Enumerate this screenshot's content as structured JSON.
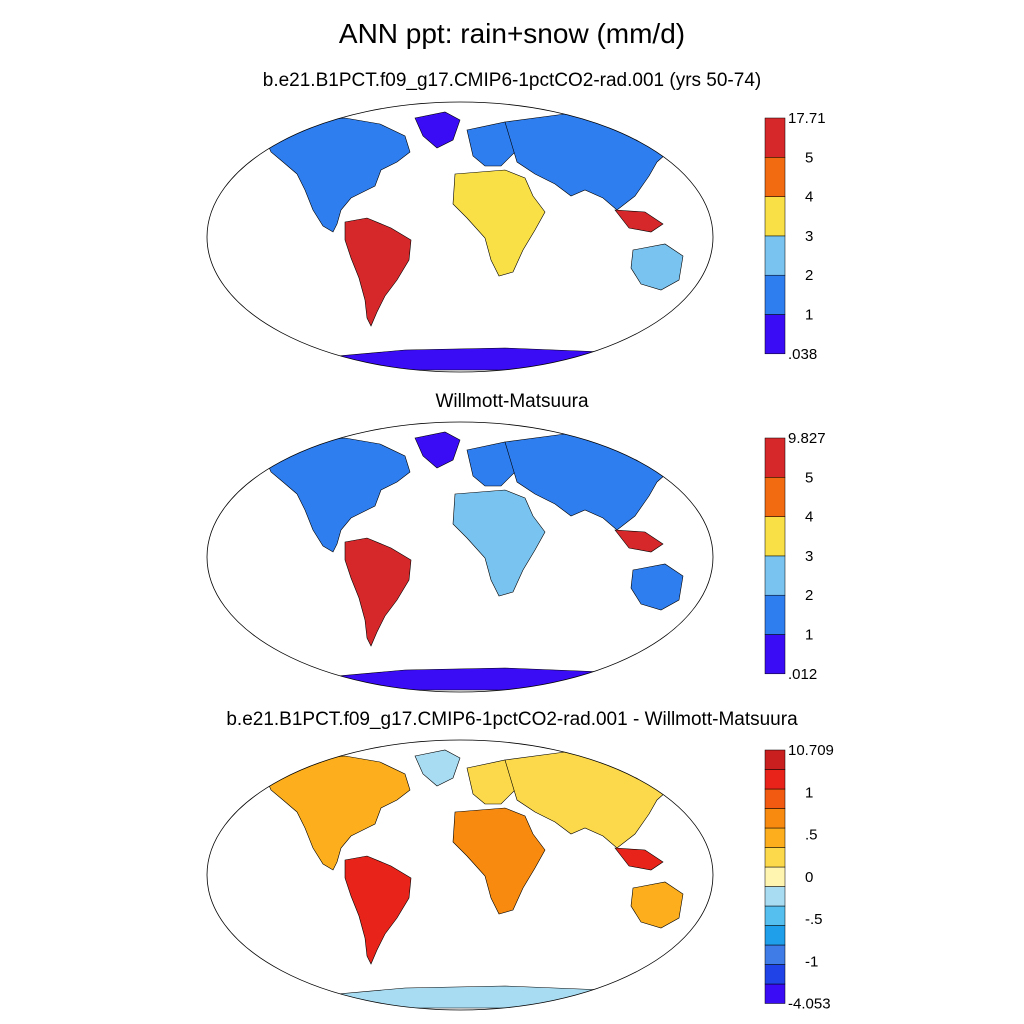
{
  "title": "ANN ppt: rain+snow (mm/d)",
  "panels": [
    {
      "subtitle": "b.e21.B1PCT.f09_g17.CMIP6-1pctCO2-rad.001 (yrs 50-74)",
      "colorbar": {
        "colors": [
          "#3a0bf5",
          "#2f7ef0",
          "#79c3f0",
          "#f9e046",
          "#f26b10",
          "#d6282b"
        ],
        "labels": [
          ".038",
          "1",
          "2",
          "3",
          "4",
          "5",
          "17.71"
        ]
      }
    },
    {
      "subtitle": "Willmott-Matsuura",
      "colorbar": {
        "colors": [
          "#3a0bf5",
          "#2f7ef0",
          "#79c3f0",
          "#f9e046",
          "#f26b10",
          "#d6282b"
        ],
        "labels": [
          ".012",
          "1",
          "2",
          "3",
          "4",
          "5",
          "9.827"
        ]
      }
    },
    {
      "subtitle": "b.e21.B1PCT.f09_g17.CMIP6-1pctCO2-rad.001 - Willmott-Matsuura",
      "colorbar": {
        "colors": [
          "#3a0bf5",
          "#1f43e6",
          "#3f7ce8",
          "#1f9ee9",
          "#55bff0",
          "#a8dcf2",
          "#fff4b0",
          "#fcd94a",
          "#fcae1c",
          "#f78a0f",
          "#f25a12",
          "#e8241a",
          "#c91f1f"
        ],
        "labels": [
          "-4.053",
          "-1",
          "-.5",
          "0",
          ".5",
          "1",
          "10.709"
        ]
      }
    }
  ]
}
